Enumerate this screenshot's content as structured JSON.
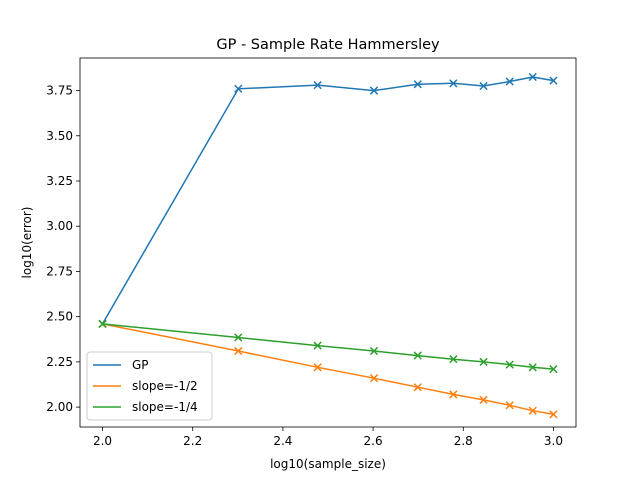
{
  "chart_data": {
    "type": "line",
    "title": "GP - Sample Rate Hammersley",
    "xlabel": "log10(sample_size)",
    "ylabel": "log10(error)",
    "xlim": [
      1.95,
      3.05
    ],
    "ylim": [
      1.89,
      3.93
    ],
    "xticks": [
      "2.0",
      "2.2",
      "2.4",
      "2.6",
      "2.8",
      "3.0"
    ],
    "xtick_values": [
      2.0,
      2.2,
      2.4,
      2.6,
      2.8,
      3.0
    ],
    "yticks": [
      "2.00",
      "2.25",
      "2.50",
      "2.75",
      "3.00",
      "3.25",
      "3.50",
      "3.75"
    ],
    "ytick_values": [
      2.0,
      2.25,
      2.5,
      2.75,
      3.0,
      3.25,
      3.5,
      3.75
    ],
    "grid": false,
    "legend_position": "lower-left",
    "marker": "x",
    "x": [
      2.0,
      2.301,
      2.477,
      2.602,
      2.699,
      2.778,
      2.845,
      2.903,
      2.954,
      3.0
    ],
    "series": [
      {
        "name": "GP",
        "color": "#1f77b4",
        "values": [
          2.46,
          3.76,
          3.78,
          3.75,
          3.785,
          3.79,
          3.775,
          3.8,
          3.825,
          3.805
        ]
      },
      {
        "name": "slope=-1/2",
        "color": "#ff7f0e",
        "values": [
          2.46,
          2.31,
          2.22,
          2.16,
          2.11,
          2.07,
          2.04,
          2.01,
          1.98,
          1.96
        ]
      },
      {
        "name": "slope=-1/4",
        "color": "#2ca02c",
        "values": [
          2.46,
          2.385,
          2.34,
          2.31,
          2.285,
          2.265,
          2.25,
          2.235,
          2.22,
          2.21
        ]
      }
    ]
  }
}
